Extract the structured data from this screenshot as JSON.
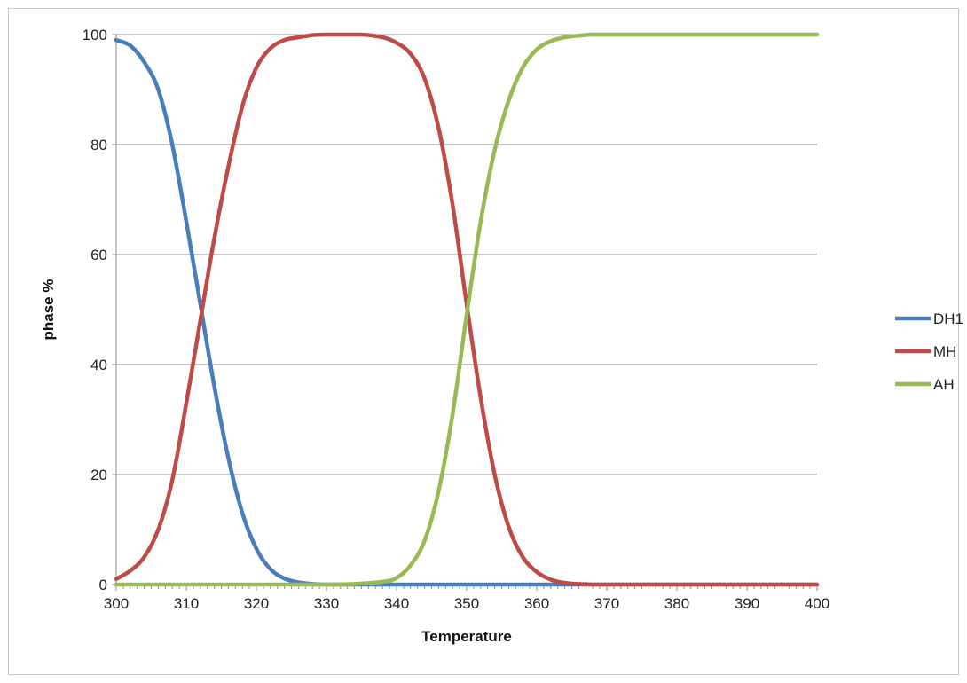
{
  "chart_data": {
    "type": "line",
    "title": "",
    "xlabel": "Temperature",
    "ylabel": "phase %",
    "xlim": [
      300,
      400
    ],
    "ylim": [
      0,
      100
    ],
    "x_ticks": [
      300,
      310,
      320,
      330,
      340,
      350,
      360,
      370,
      380,
      390,
      400
    ],
    "y_ticks": [
      0,
      20,
      40,
      60,
      80,
      100
    ],
    "grid": "horizontal",
    "legend": "right",
    "series": [
      {
        "name": "DH1",
        "color": "#4a7ebb",
        "x": [
          300,
          302,
          304,
          306,
          308,
          310,
          312,
          314,
          316,
          318,
          320,
          322,
          324,
          326,
          328,
          330,
          335,
          340,
          350,
          360,
          370,
          380,
          390,
          400
        ],
        "y": [
          99,
          98,
          95,
          90,
          80,
          66,
          51,
          36,
          23,
          13,
          6.5,
          2.8,
          1.1,
          0.4,
          0.1,
          0,
          0,
          0,
          0,
          0,
          0,
          0,
          0,
          0
        ]
      },
      {
        "name": "MH",
        "color": "#be4b48",
        "x": [
          300,
          302,
          304,
          306,
          308,
          310,
          312,
          314,
          316,
          318,
          320,
          322,
          324,
          326,
          328,
          330,
          335,
          338,
          340,
          342,
          344,
          346,
          348,
          350,
          352,
          354,
          356,
          358,
          360,
          362,
          364,
          366,
          368,
          370,
          380,
          390,
          400
        ],
        "y": [
          1,
          2.5,
          5,
          10,
          19,
          33,
          48,
          63,
          76,
          87,
          94,
          97.5,
          99,
          99.5,
          99.9,
          100,
          100,
          99.5,
          98.5,
          96.5,
          92,
          83,
          69,
          51,
          34,
          20,
          10.5,
          5,
          2.3,
          0.9,
          0.3,
          0.1,
          0,
          0,
          0,
          0,
          0
        ]
      },
      {
        "name": "AH",
        "color": "#98b954",
        "x": [
          300,
          310,
          320,
          330,
          334,
          338,
          340,
          342,
          344,
          346,
          348,
          350,
          352,
          354,
          356,
          358,
          360,
          362,
          364,
          366,
          368,
          370,
          380,
          390,
          400
        ],
        "y": [
          0,
          0,
          0,
          0,
          0.1,
          0.5,
          1.2,
          3.5,
          8,
          17,
          31,
          49,
          66,
          79,
          88,
          94,
          97.3,
          98.8,
          99.5,
          99.8,
          100,
          100,
          100,
          100,
          100
        ]
      }
    ]
  }
}
